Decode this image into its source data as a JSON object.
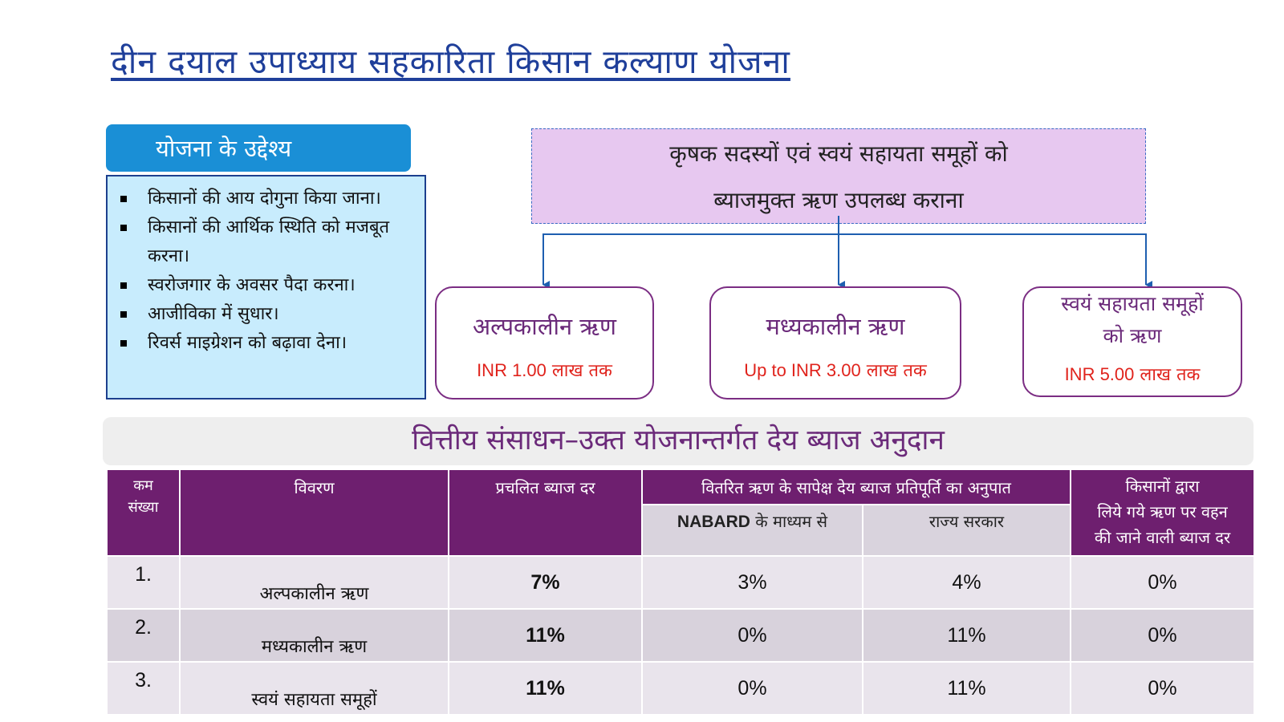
{
  "title": "दीन दयाल उपाध्याय सहकारिता किसान कल्याण योजना",
  "objectives": {
    "heading": "योजना के उद्देश्य",
    "items": [
      "किसानों की आय दोगुना किया जाना।",
      "किसानों की आर्थिक स्थिति को मजबूत करना।",
      "स्वरोजगार के अवसर पैदा करना।",
      "आजीविका में सुधार।",
      "रिवर्स माइग्रेशन को बढ़ावा देना।"
    ]
  },
  "goal": {
    "line1": "कृषक सदस्यों एवं स्वयं सहायता समूहों को",
    "line2": "ब्याजमुक्त ऋण उपलब्ध कराना"
  },
  "loan_types": [
    {
      "name": "अल्पकालीन ऋण",
      "amount_prefix": "INR 1.00",
      "amount_suffix": "लाख तक"
    },
    {
      "name": "मध्यकालीन ऋण",
      "amount_prefix": "Up to INR 3.00",
      "amount_suffix": "लाख तक"
    },
    {
      "name_line1": "स्वयं सहायता समूहों",
      "name_line2": "को ऋण",
      "amount_prefix": "INR 5.00",
      "amount_suffix": "लाख तक"
    }
  ],
  "finance_heading": "वित्तीय संसाधन–उक्त योजनान्तर्गत देय ब्याज अनुदान",
  "table": {
    "headers": {
      "serial_line1": "कम",
      "serial_line2": "संख्या",
      "description": "विवरण",
      "prevailing_rate": "प्रचलित ब्याज दर",
      "ratio": "वितरित ऋण के सापेक्ष देय ब्याज प्रतिपूर्ति का अनुपात",
      "nabard_bold": "NABARD",
      "nabard_rest": "के माध्यम से",
      "state": "राज्य सरकार",
      "farmer_line1": "किसानों द्वारा",
      "farmer_line2": "लिये गये ऋण पर वहन",
      "farmer_line3": "की जाने वाली ब्याज दर"
    },
    "rows": [
      {
        "sn": "1.",
        "desc": "अल्पकालीन ऋण",
        "rate": "7%",
        "nabard": "3%",
        "state": "4%",
        "farmer": "0%"
      },
      {
        "sn": "2.",
        "desc": "मध्यकालीन ऋण",
        "rate": "11%",
        "nabard": "0%",
        "state": "11%",
        "farmer": "0%"
      },
      {
        "sn": "3.",
        "desc": "स्वयं सहायता समूहों",
        "rate": "11%",
        "nabard": "0%",
        "state": "11%",
        "farmer": "0%"
      }
    ]
  },
  "colors": {
    "title": "#1f3f9a",
    "objective_header": "#1a8fd6",
    "objective_box": "#c8ecfd",
    "goal_box": "#e7c8f0",
    "card_border": "#7b2d83",
    "amount_text": "#e0231c",
    "table_header": "#6e1f6f",
    "connector": "#1e5fb0"
  }
}
